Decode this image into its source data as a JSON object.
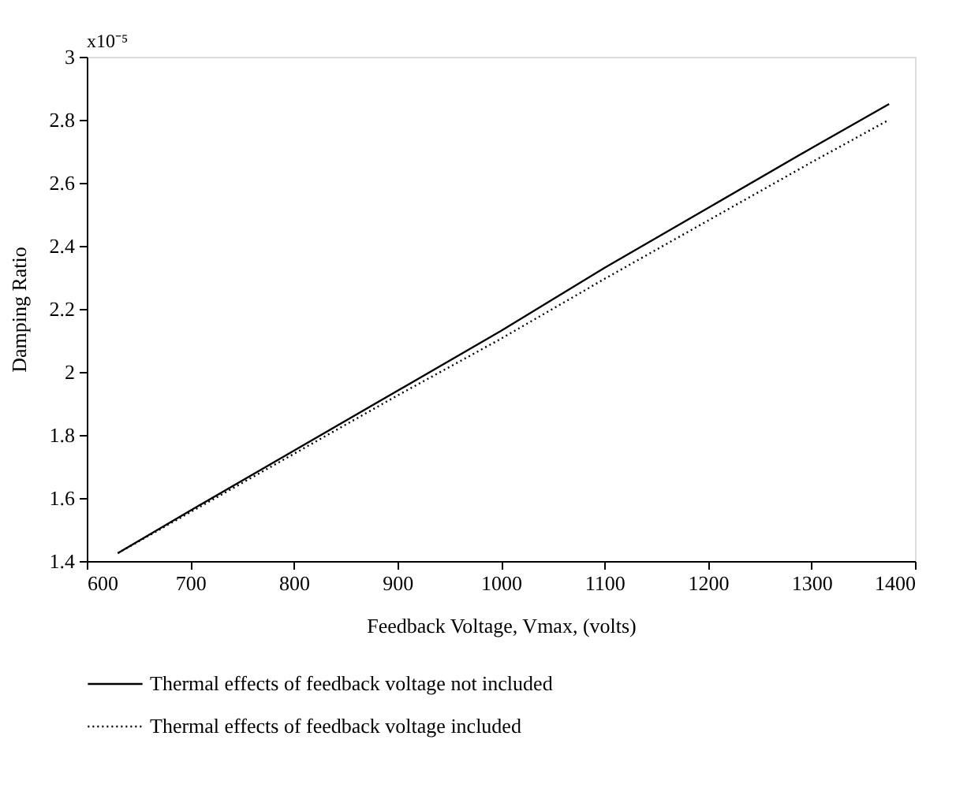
{
  "chart_data": {
    "type": "line",
    "xlabel": "Feedback Voltage, Vmax, (volts)",
    "ylabel": "Damping Ratio",
    "annotations": [
      "x10⁻⁵"
    ],
    "x": [
      630,
      700,
      800,
      900,
      1000,
      1100,
      1200,
      1300,
      1375
    ],
    "series": [
      {
        "name": "Thermal effects of feedback voltage not included",
        "color": "#000000",
        "line_style": "solid",
        "values": [
          1.425,
          1.56,
          1.75,
          1.94,
          2.13,
          2.33,
          2.52,
          2.71,
          2.85
        ]
      },
      {
        "name": "Thermal effects of feedback voltage included",
        "color": "#000000",
        "line_style": "dotted",
        "values": [
          1.425,
          1.555,
          1.74,
          1.925,
          2.105,
          2.295,
          2.48,
          2.665,
          2.8
        ]
      }
    ],
    "xlim": [
      600,
      1400
    ],
    "xticks": [
      600,
      700,
      800,
      900,
      1000,
      1100,
      1200,
      1300,
      1400
    ],
    "ylim": [
      1.4,
      3
    ],
    "yticks": [
      1.4,
      1.6,
      1.8,
      2,
      2.2,
      2.4,
      2.6,
      2.8,
      3
    ],
    "grid": false,
    "legend": "bottom",
    "marker": "none"
  }
}
